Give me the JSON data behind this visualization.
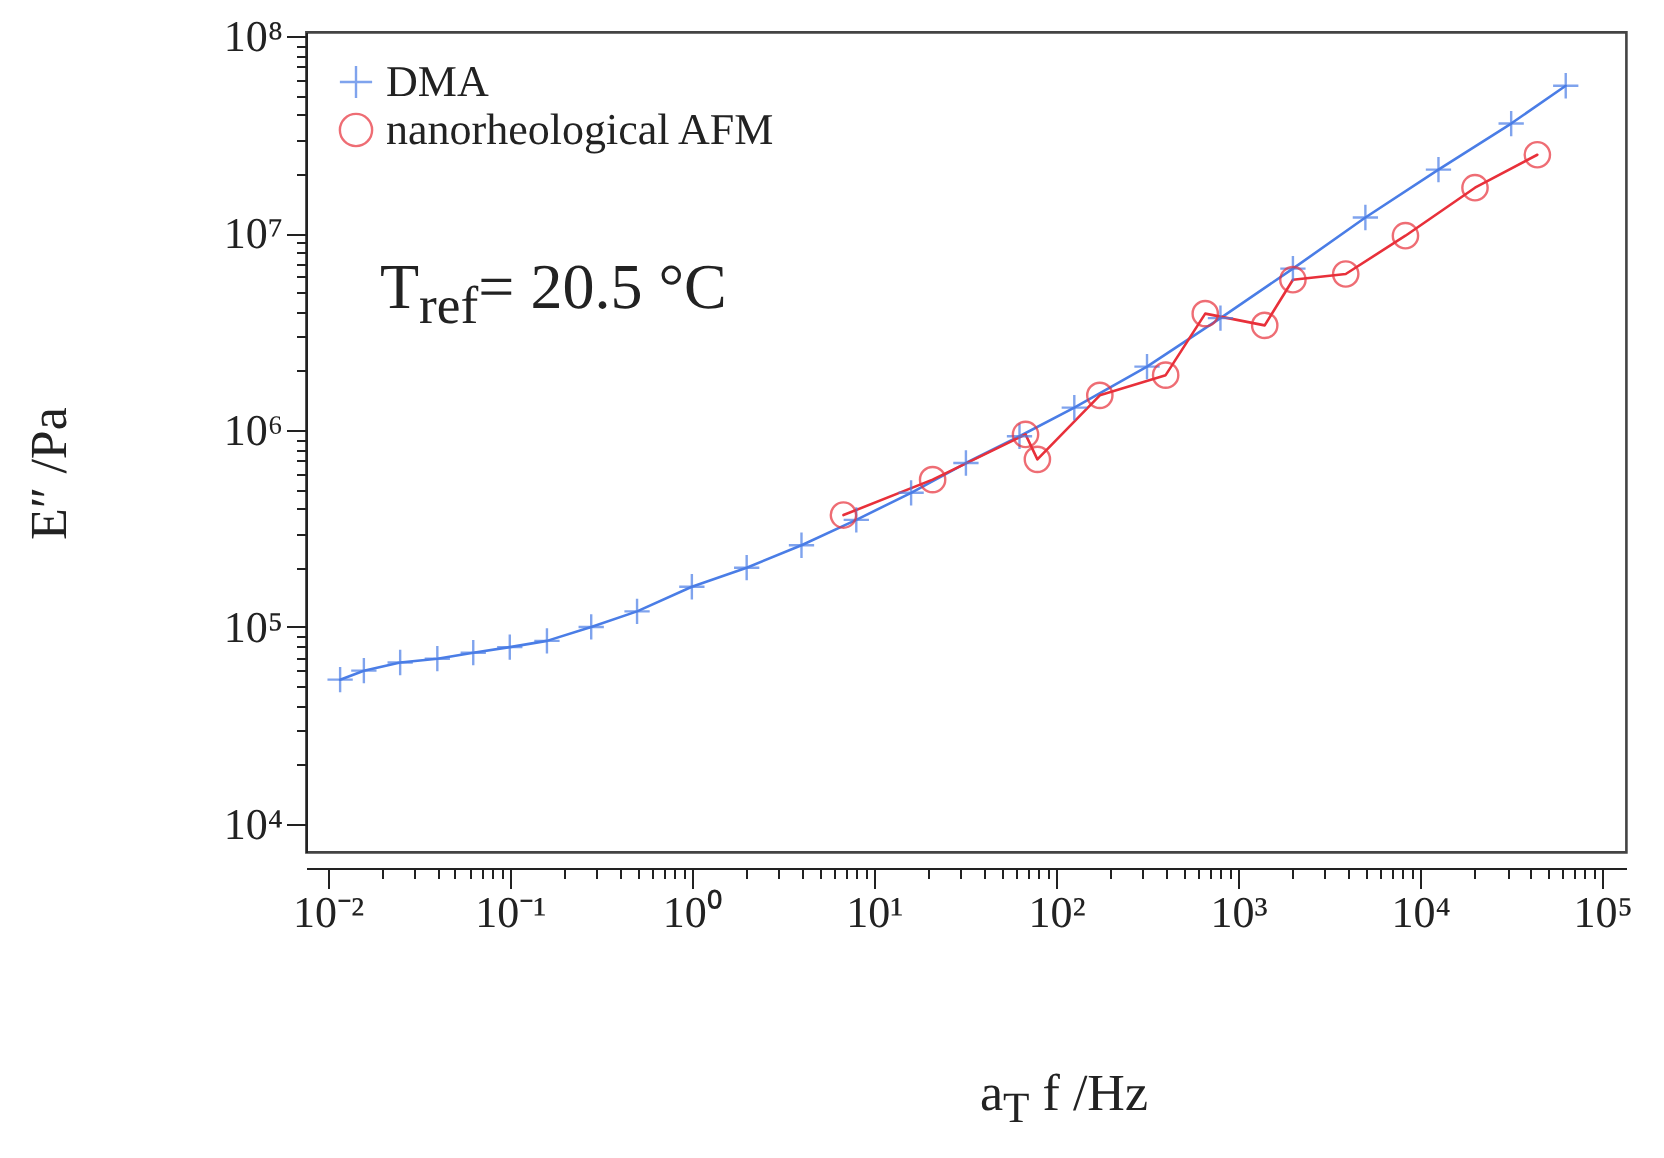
{
  "chart_data": {
    "type": "line",
    "xlabel": "a$_{T}$ f /Hz",
    "ylabel": "E″ /Pa",
    "annotations": [
      "T$_{ref}$= 20.5 °C"
    ],
    "log": "xy",
    "legend": "top left",
    "xlim": [
      0.0076,
      135000
    ],
    "ylim": [
      7200,
      105000000
    ],
    "xticks": [
      {
        "value": 0.01,
        "label": "10⁻²"
      },
      {
        "value": 0.02,
        "label": null
      },
      {
        "value": 0.03,
        "label": null
      },
      {
        "value": 0.04,
        "label": null
      },
      {
        "value": 0.05,
        "label": null
      },
      {
        "value": 0.06,
        "label": null
      },
      {
        "value": 0.07,
        "label": null
      },
      {
        "value": 0.08,
        "label": null
      },
      {
        "value": 0.09,
        "label": null
      },
      {
        "value": 0.1,
        "label": "10⁻¹"
      },
      {
        "value": 0.2,
        "label": null
      },
      {
        "value": 0.3,
        "label": null
      },
      {
        "value": 0.4,
        "label": null
      },
      {
        "value": 0.5,
        "label": null
      },
      {
        "value": 0.6,
        "label": null
      },
      {
        "value": 0.7,
        "label": null
      },
      {
        "value": 0.8,
        "label": null
      },
      {
        "value": 0.9,
        "label": null
      },
      {
        "value": 1,
        "label": "10⁰"
      },
      {
        "value": 2,
        "label": null
      },
      {
        "value": 3,
        "label": null
      },
      {
        "value": 4,
        "label": null
      },
      {
        "value": 5,
        "label": null
      },
      {
        "value": 6,
        "label": null
      },
      {
        "value": 7,
        "label": null
      },
      {
        "value": 8,
        "label": null
      },
      {
        "value": 9,
        "label": null
      },
      {
        "value": 10,
        "label": "10¹"
      },
      {
        "value": 20,
        "label": null
      },
      {
        "value": 30,
        "label": null
      },
      {
        "value": 40,
        "label": null
      },
      {
        "value": 50,
        "label": null
      },
      {
        "value": 60,
        "label": null
      },
      {
        "value": 70,
        "label": null
      },
      {
        "value": 80,
        "label": null
      },
      {
        "value": 90,
        "label": null
      },
      {
        "value": 100,
        "label": "10²"
      },
      {
        "value": 200,
        "label": null
      },
      {
        "value": 300,
        "label": null
      },
      {
        "value": 400,
        "label": null
      },
      {
        "value": 500,
        "label": null
      },
      {
        "value": 600,
        "label": null
      },
      {
        "value": 700,
        "label": null
      },
      {
        "value": 800,
        "label": null
      },
      {
        "value": 900,
        "label": null
      },
      {
        "value": 1000,
        "label": "10³"
      },
      {
        "value": 2000,
        "label": null
      },
      {
        "value": 3000,
        "label": null
      },
      {
        "value": 4000,
        "label": null
      },
      {
        "value": 5000,
        "label": null
      },
      {
        "value": 6000,
        "label": null
      },
      {
        "value": 7000,
        "label": null
      },
      {
        "value": 8000,
        "label": null
      },
      {
        "value": 9000,
        "label": null
      },
      {
        "value": 10000,
        "label": "10⁴"
      },
      {
        "value": 20000,
        "label": null
      },
      {
        "value": 30000,
        "label": null
      },
      {
        "value": 40000,
        "label": null
      },
      {
        "value": 50000,
        "label": null
      },
      {
        "value": 60000,
        "label": null
      },
      {
        "value": 70000,
        "label": null
      },
      {
        "value": 80000,
        "label": null
      },
      {
        "value": 90000,
        "label": null
      },
      {
        "value": 100000,
        "label": "10⁵"
      }
    ],
    "yticks": [
      {
        "value": 10000,
        "label": "10⁴"
      },
      {
        "value": 20000,
        "label": null
      },
      {
        "value": 30000,
        "label": null
      },
      {
        "value": 40000,
        "label": null
      },
      {
        "value": 50000,
        "label": null
      },
      {
        "value": 60000,
        "label": null
      },
      {
        "value": 70000,
        "label": null
      },
      {
        "value": 80000,
        "label": null
      },
      {
        "value": 90000,
        "label": null
      },
      {
        "value": 100000,
        "label": "10⁵"
      },
      {
        "value": 200000,
        "label": null
      },
      {
        "value": 300000,
        "label": null
      },
      {
        "value": 400000,
        "label": null
      },
      {
        "value": 500000,
        "label": null
      },
      {
        "value": 600000,
        "label": null
      },
      {
        "value": 700000,
        "label": null
      },
      {
        "value": 800000,
        "label": null
      },
      {
        "value": 900000,
        "label": null
      },
      {
        "value": 1000000,
        "label": "10⁶"
      },
      {
        "value": 2000000,
        "label": null
      },
      {
        "value": 3000000,
        "label": null
      },
      {
        "value": 4000000,
        "label": null
      },
      {
        "value": 5000000,
        "label": null
      },
      {
        "value": 6000000,
        "label": null
      },
      {
        "value": 7000000,
        "label": null
      },
      {
        "value": 8000000,
        "label": null
      },
      {
        "value": 9000000,
        "label": null
      },
      {
        "value": 10000000,
        "label": "10⁷"
      },
      {
        "value": 20000000,
        "label": null
      },
      {
        "value": 30000000,
        "label": null
      },
      {
        "value": 40000000,
        "label": null
      },
      {
        "value": 50000000,
        "label": null
      },
      {
        "value": 60000000,
        "label": null
      },
      {
        "value": 70000000,
        "label": null
      },
      {
        "value": 80000000,
        "label": null
      },
      {
        "value": 90000000,
        "label": null
      },
      {
        "value": 100000000,
        "label": "10⁸"
      }
    ],
    "series": [
      {
        "name": "DMA",
        "color": "#4a7de6",
        "marker": "cross",
        "x": [
          0.0117,
          0.0158,
          0.025,
          0.04,
          0.063,
          0.1,
          0.16,
          0.28,
          0.5,
          1,
          2,
          4,
          8,
          16,
          32,
          63,
          126,
          316,
          800,
          2000,
          5000,
          12600,
          31600,
          63000
        ],
        "values": [
          54000,
          60000,
          66000,
          69000,
          74000,
          79000,
          85000,
          100000,
          120000,
          160000,
          200000,
          260000,
          350000,
          480000,
          680000,
          930000,
          1300000,
          2100000,
          3700000,
          6600000,
          12000000,
          21000000,
          36000000,
          56000000
        ]
      },
      {
        "name": "nanorheological AFM",
        "color": "#e8303a",
        "marker": "circle",
        "x": [
          6.8,
          21,
          68,
          79,
          174,
          400,
          660,
          1400,
          2000,
          3900,
          8300,
          20000,
          44000
        ],
        "values": [
          370000,
          560000,
          950000,
          710000,
          1500000,
          1900000,
          3900000,
          3400000,
          5800000,
          6200000,
          9700000,
          17000000,
          25000000
        ]
      }
    ]
  }
}
